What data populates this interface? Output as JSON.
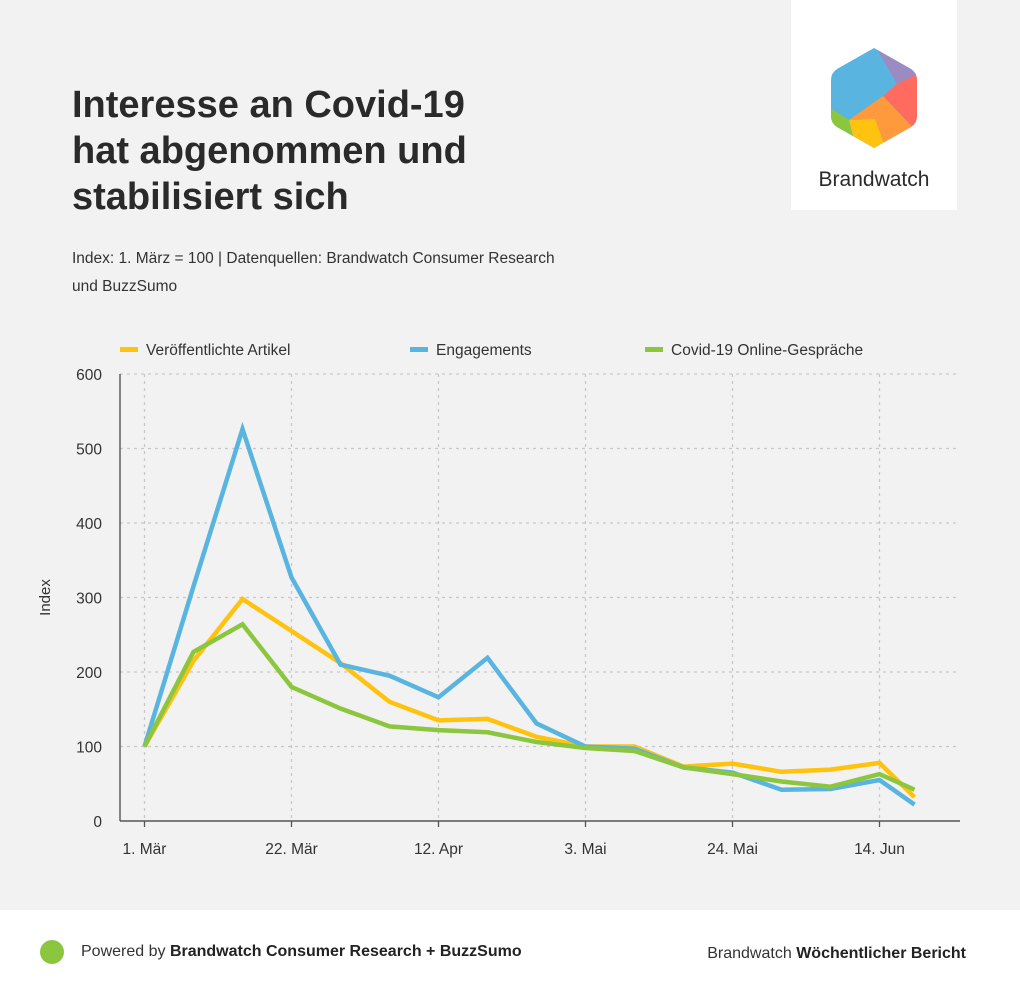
{
  "header": {
    "title_lines": [
      "Interesse an Covid-19",
      "hat abgenommen und",
      "stabilisiert sich"
    ],
    "subtitle_lines": [
      "Index: 1. März = 100 | Datenquellen: Brandwatch Consumer Research",
      "und BuzzSumo"
    ]
  },
  "logo": {
    "text": "Brandwatch",
    "icon": "brandwatch-hexagon-logo"
  },
  "footer": {
    "powered_prefix": "Powered by",
    "powered_bold": "Brandwatch Consumer Research + BuzzSumo",
    "report_prefix": "Brandwatch",
    "report_bold": "Wöchentlicher Bericht"
  },
  "colors": {
    "articles": "#ffc20e",
    "engagements": "#5ab4e0",
    "conversations": "#8cc63f",
    "grid": "#c8c8c8",
    "axis": "#555555"
  },
  "chart_data": {
    "type": "line",
    "title": "Interesse an Covid-19 hat abgenommen und stabilisiert sich",
    "xlabel": "",
    "ylabel": "Index",
    "ylim": [
      0,
      600
    ],
    "yticks": [
      0,
      100,
      200,
      300,
      400,
      500,
      600
    ],
    "x": [
      0,
      7,
      14,
      21,
      28,
      35,
      42,
      49,
      56,
      63,
      70,
      77,
      84,
      91,
      98,
      105,
      110
    ],
    "xticks": [
      {
        "x": 0,
        "label": "1. Mär"
      },
      {
        "x": 21,
        "label": "22. Mär"
      },
      {
        "x": 42,
        "label": "12. Apr"
      },
      {
        "x": 63,
        "label": "3. Mai"
      },
      {
        "x": 84,
        "label": "24. Mai"
      },
      {
        "x": 105,
        "label": "14. Jun"
      }
    ],
    "xlim": [
      -3.5,
      116.5
    ],
    "grid": true,
    "legend_position": "top",
    "series": [
      {
        "name": "Veröffentlichte Artikel",
        "color": "#ffc20e",
        "values": [
          100,
          215,
          298,
          255,
          212,
          160,
          135,
          137,
          113,
          100,
          100,
          73,
          77,
          66,
          69,
          78,
          32
        ]
      },
      {
        "name": "Engagements",
        "color": "#5ab4e0",
        "values": [
          100,
          315,
          526,
          327,
          210,
          195,
          166,
          219,
          131,
          100,
          97,
          72,
          65,
          42,
          43,
          55,
          22
        ]
      },
      {
        "name": "Covid-19 Online-Gespräche",
        "color": "#8cc63f",
        "values": [
          100,
          227,
          264,
          180,
          151,
          127,
          122,
          119,
          106,
          98,
          94,
          72,
          63,
          53,
          46,
          63,
          42
        ]
      }
    ]
  }
}
